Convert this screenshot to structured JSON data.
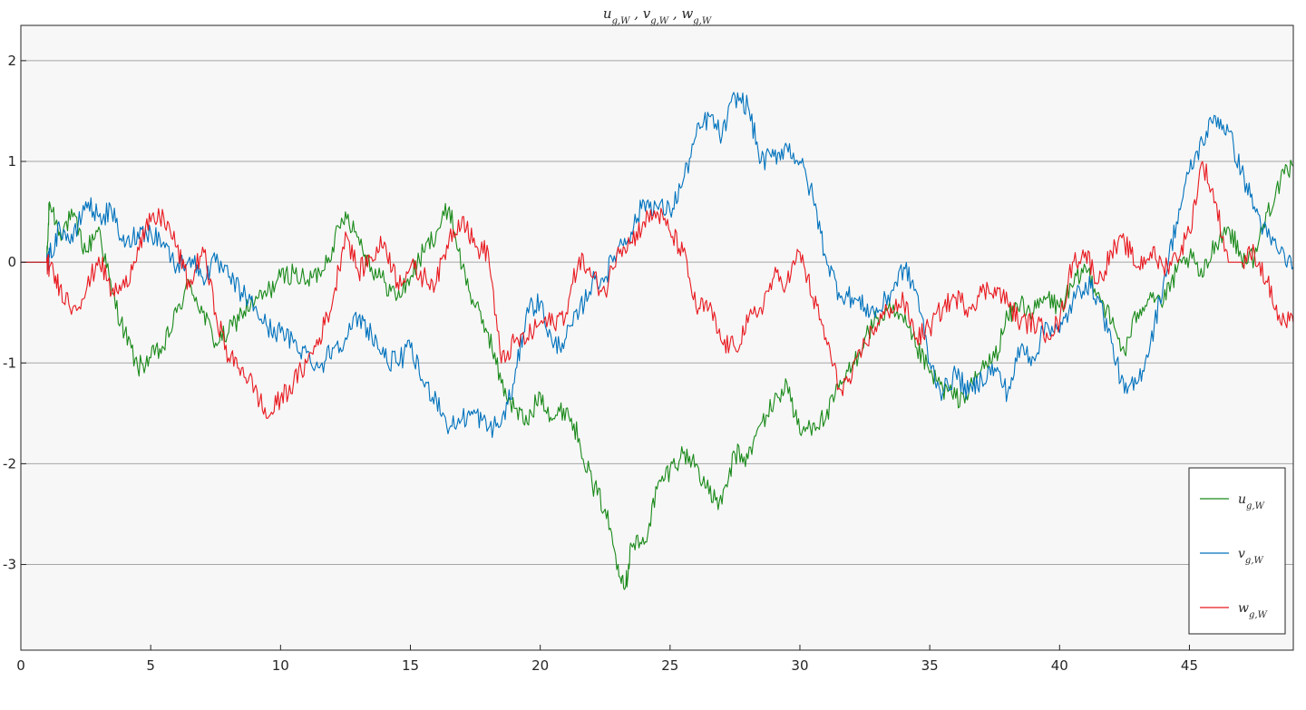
{
  "chart_data": {
    "type": "line",
    "title": "u_{g,W} , v_{g,W} , w_{g,W}",
    "xlabel": "",
    "ylabel": "",
    "xlim": [
      0,
      49
    ],
    "ylim": [
      -3.85,
      2.35
    ],
    "xticks": [
      0,
      5,
      10,
      15,
      20,
      25,
      30,
      35,
      40,
      45
    ],
    "yticks": [
      2,
      1,
      0,
      -1,
      -2,
      -3
    ],
    "grid": "horizontal",
    "legend_position": "bottom-right",
    "background": "#f7f7f7",
    "series": [
      {
        "name": "u_{g,W}",
        "color": "#1a8a1a",
        "points": [
          [
            0,
            0
          ],
          [
            1,
            0
          ],
          [
            1.1,
            0.6
          ],
          [
            1.5,
            0.3
          ],
          [
            2,
            0.45
          ],
          [
            2.5,
            0.1
          ],
          [
            3,
            0.35
          ],
          [
            3.5,
            -0.3
          ],
          [
            4,
            -0.7
          ],
          [
            4.5,
            -1.05
          ],
          [
            5,
            -0.95
          ],
          [
            5.5,
            -0.85
          ],
          [
            6,
            -0.5
          ],
          [
            6.5,
            -0.2
          ],
          [
            7,
            -0.5
          ],
          [
            7.5,
            -0.8
          ],
          [
            8,
            -0.7
          ],
          [
            8.5,
            -0.5
          ],
          [
            9,
            -0.4
          ],
          [
            9.5,
            -0.3
          ],
          [
            10,
            -0.15
          ],
          [
            10.5,
            -0.1
          ],
          [
            11,
            -0.2
          ],
          [
            11.5,
            -0.1
          ],
          [
            12,
            0.15
          ],
          [
            12.5,
            0.5
          ],
          [
            13,
            0.25
          ],
          [
            13.5,
            -0.05
          ],
          [
            14,
            -0.2
          ],
          [
            14.5,
            -0.35
          ],
          [
            15,
            -0.15
          ],
          [
            15.5,
            0.1
          ],
          [
            16,
            0.3
          ],
          [
            16.5,
            0.55
          ],
          [
            17,
            -0.05
          ],
          [
            17.5,
            -0.45
          ],
          [
            18,
            -0.7
          ],
          [
            18.5,
            -1.2
          ],
          [
            19,
            -1.45
          ],
          [
            19.5,
            -1.6
          ],
          [
            20,
            -1.3
          ],
          [
            20.5,
            -1.55
          ],
          [
            21,
            -1.45
          ],
          [
            21.5,
            -1.75
          ],
          [
            22,
            -2.2
          ],
          [
            22.5,
            -2.45
          ],
          [
            23,
            -3.0
          ],
          [
            23.3,
            -3.2
          ],
          [
            23.5,
            -2.8
          ],
          [
            24,
            -2.8
          ],
          [
            24.5,
            -2.25
          ],
          [
            25,
            -2.05
          ],
          [
            25.5,
            -1.9
          ],
          [
            26,
            -2.0
          ],
          [
            26.5,
            -2.3
          ],
          [
            27,
            -2.4
          ],
          [
            27.5,
            -1.9
          ],
          [
            28,
            -1.95
          ],
          [
            28.5,
            -1.6
          ],
          [
            29,
            -1.4
          ],
          [
            29.5,
            -1.2
          ],
          [
            30,
            -1.7
          ],
          [
            30.5,
            -1.6
          ],
          [
            31,
            -1.55
          ],
          [
            31.5,
            -1.25
          ],
          [
            32,
            -1.05
          ],
          [
            32.5,
            -0.75
          ],
          [
            33,
            -0.55
          ],
          [
            33.5,
            -0.5
          ],
          [
            34,
            -0.6
          ],
          [
            34.5,
            -0.85
          ],
          [
            35,
            -1.1
          ],
          [
            35.5,
            -1.25
          ],
          [
            36,
            -1.35
          ],
          [
            36.5,
            -1.3
          ],
          [
            37,
            -1.05
          ],
          [
            37.5,
            -0.95
          ],
          [
            38,
            -0.55
          ],
          [
            38.5,
            -0.4
          ],
          [
            39,
            -0.5
          ],
          [
            39.5,
            -0.35
          ],
          [
            40,
            -0.45
          ],
          [
            40.5,
            -0.25
          ],
          [
            41,
            -0.05
          ],
          [
            41.5,
            -0.3
          ],
          [
            42,
            -0.6
          ],
          [
            42.5,
            -0.9
          ],
          [
            43,
            -0.5
          ],
          [
            43.5,
            -0.3
          ],
          [
            44,
            -0.4
          ],
          [
            44.5,
            -0.1
          ],
          [
            45,
            0.05
          ],
          [
            45.5,
            -0.15
          ],
          [
            46,
            0.2
          ],
          [
            46.5,
            0.35
          ],
          [
            47,
            0.05
          ],
          [
            47.5,
            0.05
          ],
          [
            48,
            0.5
          ],
          [
            48.5,
            0.8
          ],
          [
            49,
            0.95
          ]
        ]
      },
      {
        "name": "v_{g,W}",
        "color": "#0072bd",
        "points": [
          [
            0,
            0
          ],
          [
            1,
            0
          ],
          [
            1.1,
            0.05
          ],
          [
            1.5,
            0.35
          ],
          [
            2,
            0.2
          ],
          [
            2.5,
            0.6
          ],
          [
            3,
            0.45
          ],
          [
            3.5,
            0.5
          ],
          [
            4,
            0.15
          ],
          [
            4.5,
            0.3
          ],
          [
            5,
            0.3
          ],
          [
            5.5,
            0.2
          ],
          [
            6,
            -0.05
          ],
          [
            6.5,
            0.05
          ],
          [
            7,
            -0.15
          ],
          [
            7.5,
            0.0
          ],
          [
            8,
            -0.15
          ],
          [
            8.5,
            -0.3
          ],
          [
            9,
            -0.45
          ],
          [
            9.5,
            -0.65
          ],
          [
            10,
            -0.7
          ],
          [
            10.5,
            -0.8
          ],
          [
            11,
            -0.9
          ],
          [
            11.5,
            -1.05
          ],
          [
            12,
            -0.85
          ],
          [
            12.5,
            -0.75
          ],
          [
            13,
            -0.55
          ],
          [
            13.5,
            -0.7
          ],
          [
            14,
            -0.95
          ],
          [
            14.5,
            -1.0
          ],
          [
            15,
            -0.85
          ],
          [
            15.5,
            -1.2
          ],
          [
            16,
            -1.35
          ],
          [
            16.5,
            -1.65
          ],
          [
            17,
            -1.55
          ],
          [
            17.5,
            -1.5
          ],
          [
            18,
            -1.65
          ],
          [
            18.5,
            -1.6
          ],
          [
            19,
            -1.2
          ],
          [
            19.5,
            -0.45
          ],
          [
            20,
            -0.4
          ],
          [
            20.5,
            -0.85
          ],
          [
            21,
            -0.75
          ],
          [
            21.5,
            -0.5
          ],
          [
            22,
            -0.2
          ],
          [
            22.5,
            -0.15
          ],
          [
            23,
            0.15
          ],
          [
            23.5,
            0.3
          ],
          [
            24,
            0.6
          ],
          [
            24.5,
            0.55
          ],
          [
            25,
            0.5
          ],
          [
            25.5,
            0.8
          ],
          [
            26,
            1.25
          ],
          [
            26.5,
            1.45
          ],
          [
            27,
            1.25
          ],
          [
            27.5,
            1.65
          ],
          [
            28,
            1.55
          ],
          [
            28.5,
            1.0
          ],
          [
            29,
            1.05
          ],
          [
            29.5,
            1.15
          ],
          [
            30,
            1.0
          ],
          [
            30.5,
            0.65
          ],
          [
            31,
            0.05
          ],
          [
            31.5,
            -0.3
          ],
          [
            32,
            -0.35
          ],
          [
            32.5,
            -0.45
          ],
          [
            33,
            -0.5
          ],
          [
            33.5,
            -0.3
          ],
          [
            34,
            -0.05
          ],
          [
            34.5,
            -0.3
          ],
          [
            35,
            -1.0
          ],
          [
            35.5,
            -1.3
          ],
          [
            36,
            -1.1
          ],
          [
            36.5,
            -1.3
          ],
          [
            37,
            -1.15
          ],
          [
            37.5,
            -1.05
          ],
          [
            38,
            -1.3
          ],
          [
            38.5,
            -0.85
          ],
          [
            39,
            -0.95
          ],
          [
            39.5,
            -0.6
          ],
          [
            40,
            -0.7
          ],
          [
            40.5,
            -0.4
          ],
          [
            41,
            -0.2
          ],
          [
            41.5,
            -0.35
          ],
          [
            42,
            -0.8
          ],
          [
            42.5,
            -1.3
          ],
          [
            43,
            -1.2
          ],
          [
            43.5,
            -0.8
          ],
          [
            44,
            -0.2
          ],
          [
            44.5,
            0.4
          ],
          [
            45,
            0.9
          ],
          [
            45.5,
            1.2
          ],
          [
            46,
            1.45
          ],
          [
            46.5,
            1.3
          ],
          [
            47,
            0.9
          ],
          [
            47.5,
            0.55
          ],
          [
            48,
            0.25
          ],
          [
            48.5,
            0.1
          ],
          [
            49,
            -0.05
          ]
        ]
      },
      {
        "name": "w_{g,W}",
        "color": "#e8191f",
        "points": [
          [
            0,
            0
          ],
          [
            1,
            0
          ],
          [
            1.1,
            -0.05
          ],
          [
            1.5,
            -0.25
          ],
          [
            2,
            -0.45
          ],
          [
            2.5,
            -0.3
          ],
          [
            3,
            0.05
          ],
          [
            3.5,
            -0.3
          ],
          [
            4,
            -0.25
          ],
          [
            4.5,
            0.15
          ],
          [
            5,
            0.4
          ],
          [
            5.5,
            0.45
          ],
          [
            6,
            0.15
          ],
          [
            6.5,
            -0.25
          ],
          [
            7,
            0.15
          ],
          [
            7.5,
            -0.5
          ],
          [
            8,
            -0.95
          ],
          [
            8.5,
            -1.05
          ],
          [
            9,
            -1.25
          ],
          [
            9.5,
            -1.55
          ],
          [
            10,
            -1.35
          ],
          [
            10.5,
            -1.2
          ],
          [
            11,
            -1.0
          ],
          [
            11.5,
            -0.75
          ],
          [
            12,
            -0.4
          ],
          [
            12.5,
            0.3
          ],
          [
            13,
            -0.1
          ],
          [
            13.5,
            0.05
          ],
          [
            14,
            0.2
          ],
          [
            14.5,
            -0.2
          ],
          [
            15,
            -0.05
          ],
          [
            15.5,
            -0.15
          ],
          [
            16,
            -0.2
          ],
          [
            16.5,
            0.25
          ],
          [
            17,
            0.45
          ],
          [
            17.5,
            0.15
          ],
          [
            18,
            0.1
          ],
          [
            18.5,
            -1.0
          ],
          [
            19,
            -0.8
          ],
          [
            19.5,
            -0.75
          ],
          [
            20,
            -0.6
          ],
          [
            20.5,
            -0.6
          ],
          [
            21,
            -0.5
          ],
          [
            21.5,
            0.05
          ],
          [
            22,
            -0.15
          ],
          [
            22.5,
            -0.3
          ],
          [
            23,
            0.15
          ],
          [
            23.5,
            0.2
          ],
          [
            24,
            0.4
          ],
          [
            24.5,
            0.5
          ],
          [
            25,
            0.3
          ],
          [
            25.5,
            0.1
          ],
          [
            26,
            -0.45
          ],
          [
            26.5,
            -0.45
          ],
          [
            27,
            -0.8
          ],
          [
            27.5,
            -0.85
          ],
          [
            28,
            -0.6
          ],
          [
            28.5,
            -0.45
          ],
          [
            29,
            -0.15
          ],
          [
            29.5,
            -0.2
          ],
          [
            30,
            0.1
          ],
          [
            30.5,
            -0.35
          ],
          [
            31,
            -0.75
          ],
          [
            31.5,
            -1.25
          ],
          [
            32,
            -1.15
          ],
          [
            32.5,
            -0.8
          ],
          [
            33,
            -0.6
          ],
          [
            33.5,
            -0.45
          ],
          [
            34,
            -0.4
          ],
          [
            34.5,
            -0.75
          ],
          [
            35,
            -0.65
          ],
          [
            35.5,
            -0.45
          ],
          [
            36,
            -0.35
          ],
          [
            36.5,
            -0.45
          ],
          [
            37,
            -0.3
          ],
          [
            37.5,
            -0.25
          ],
          [
            38,
            -0.4
          ],
          [
            38.5,
            -0.6
          ],
          [
            39,
            -0.6
          ],
          [
            39.5,
            -0.7
          ],
          [
            40,
            -0.6
          ],
          [
            40.5,
            0.0
          ],
          [
            41,
            0.1
          ],
          [
            41.5,
            -0.2
          ],
          [
            42,
            0.1
          ],
          [
            42.5,
            0.2
          ],
          [
            43,
            -0.05
          ],
          [
            43.5,
            0.1
          ],
          [
            44,
            -0.05
          ],
          [
            44.5,
            0.05
          ],
          [
            45,
            0.3
          ],
          [
            45.5,
            1.0
          ],
          [
            46,
            0.6
          ],
          [
            46.5,
            0.0
          ],
          [
            47,
            0.0
          ],
          [
            47.5,
            0.1
          ],
          [
            48,
            -0.2
          ],
          [
            48.5,
            -0.6
          ],
          [
            49,
            -0.6
          ]
        ]
      }
    ]
  }
}
